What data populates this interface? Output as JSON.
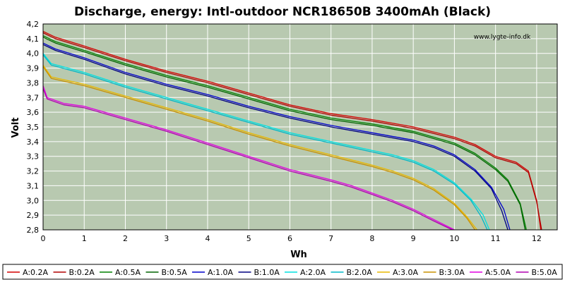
{
  "chart_data": {
    "type": "line",
    "title": "Discharge, energy: Intl-outdoor NCR18650B 3400mAh (Black)",
    "xlabel": "Wh",
    "ylabel": "Volt",
    "xlim": [
      0,
      12.5
    ],
    "ylim": [
      2.8,
      4.2
    ],
    "x_ticks": [
      "0",
      "1",
      "2",
      "3",
      "4",
      "5",
      "6",
      "7",
      "8",
      "9",
      "10",
      "11",
      "12"
    ],
    "y_ticks": [
      "2,8",
      "2,9",
      "3,0",
      "3,1",
      "3,2",
      "3,3",
      "3,4",
      "3,5",
      "3,6",
      "3,7",
      "3,8",
      "3,9",
      "4,0",
      "4,1",
      "4,2"
    ],
    "grid": true,
    "watermark": "www.lygte-info.dk",
    "legend_position": "bottom",
    "plot_background": "#b8c9b0",
    "series": [
      {
        "name": "A:0.2A",
        "color": "#d40000",
        "x": [
          0,
          0.3,
          1,
          2,
          3,
          4,
          5,
          6,
          7,
          8,
          9,
          10,
          10.5,
          11,
          11.5,
          11.8,
          12.0,
          12.1
        ],
        "y": [
          4.15,
          4.11,
          4.05,
          3.96,
          3.88,
          3.81,
          3.73,
          3.65,
          3.59,
          3.55,
          3.5,
          3.43,
          3.38,
          3.3,
          3.26,
          3.2,
          3.0,
          2.8
        ]
      },
      {
        "name": "B:0.2A",
        "color": "#b00000",
        "x": [
          0,
          0.3,
          1,
          2,
          3,
          4,
          5,
          6,
          7,
          8,
          9,
          10,
          10.5,
          11,
          11.5,
          11.8,
          12.0,
          12.12
        ],
        "y": [
          4.14,
          4.1,
          4.04,
          3.95,
          3.87,
          3.8,
          3.72,
          3.64,
          3.58,
          3.54,
          3.49,
          3.42,
          3.37,
          3.29,
          3.25,
          3.19,
          2.99,
          2.8
        ]
      },
      {
        "name": "A:0.5A",
        "color": "#008000",
        "x": [
          0,
          0.3,
          1,
          2,
          3,
          4,
          5,
          6,
          7,
          8,
          9,
          10,
          10.5,
          11,
          11.3,
          11.6,
          11.75
        ],
        "y": [
          4.12,
          4.08,
          4.02,
          3.93,
          3.85,
          3.78,
          3.7,
          3.62,
          3.56,
          3.52,
          3.47,
          3.39,
          3.32,
          3.22,
          3.14,
          2.98,
          2.8
        ]
      },
      {
        "name": "B:0.5A",
        "color": "#006400",
        "x": [
          0,
          0.3,
          1,
          2,
          3,
          4,
          5,
          6,
          7,
          8,
          9,
          10,
          10.5,
          11,
          11.3,
          11.6,
          11.72
        ],
        "y": [
          4.11,
          4.07,
          4.01,
          3.92,
          3.84,
          3.77,
          3.69,
          3.61,
          3.55,
          3.51,
          3.46,
          3.38,
          3.31,
          3.21,
          3.13,
          2.97,
          2.8
        ]
      },
      {
        "name": "A:1.0A",
        "color": "#0000cc",
        "x": [
          0,
          0.3,
          1,
          2,
          3,
          4,
          5,
          6,
          7,
          8,
          9,
          9.5,
          10,
          10.5,
          10.9,
          11.2,
          11.35
        ],
        "y": [
          4.07,
          4.03,
          3.97,
          3.87,
          3.79,
          3.72,
          3.64,
          3.57,
          3.51,
          3.46,
          3.41,
          3.37,
          3.31,
          3.21,
          3.09,
          2.94,
          2.8
        ]
      },
      {
        "name": "B:1.0A",
        "color": "#000080",
        "x": [
          0,
          0.3,
          1,
          2,
          3,
          4,
          5,
          6,
          7,
          8,
          9,
          9.5,
          10,
          10.5,
          10.9,
          11.15,
          11.3
        ],
        "y": [
          4.06,
          4.02,
          3.96,
          3.86,
          3.78,
          3.71,
          3.63,
          3.56,
          3.5,
          3.45,
          3.4,
          3.36,
          3.3,
          3.2,
          3.08,
          2.93,
          2.8
        ]
      },
      {
        "name": "A:2.0A",
        "color": "#00e0e0",
        "x": [
          0,
          0.2,
          1,
          2,
          3,
          4,
          5,
          6,
          7,
          8,
          8.5,
          9,
          9.5,
          10,
          10.4,
          10.7,
          10.85
        ],
        "y": [
          4.0,
          3.93,
          3.87,
          3.78,
          3.7,
          3.62,
          3.54,
          3.46,
          3.4,
          3.34,
          3.31,
          3.27,
          3.21,
          3.12,
          3.01,
          2.9,
          2.8
        ]
      },
      {
        "name": "B:2.0A",
        "color": "#00b8c8",
        "x": [
          0,
          0.2,
          1,
          2,
          3,
          4,
          5,
          6,
          7,
          8,
          8.5,
          9,
          9.5,
          10,
          10.4,
          10.65,
          10.8
        ],
        "y": [
          3.99,
          3.92,
          3.86,
          3.77,
          3.69,
          3.61,
          3.53,
          3.45,
          3.39,
          3.33,
          3.3,
          3.26,
          3.2,
          3.11,
          3.0,
          2.89,
          2.8
        ]
      },
      {
        "name": "A:3.0A",
        "color": "#e8b800",
        "x": [
          0,
          0.2,
          1,
          2,
          3,
          4,
          5,
          6,
          7,
          8,
          8.5,
          9,
          9.5,
          10,
          10.3,
          10.55
        ],
        "y": [
          3.92,
          3.84,
          3.79,
          3.71,
          3.63,
          3.55,
          3.46,
          3.38,
          3.31,
          3.24,
          3.2,
          3.15,
          3.08,
          2.98,
          2.89,
          2.8
        ]
      },
      {
        "name": "B:3.0A",
        "color": "#c89000",
        "x": [
          0,
          0.2,
          1,
          2,
          3,
          4,
          5,
          6,
          7,
          8,
          8.5,
          9,
          9.5,
          10,
          10.3,
          10.5
        ],
        "y": [
          3.91,
          3.83,
          3.78,
          3.7,
          3.62,
          3.54,
          3.45,
          3.37,
          3.3,
          3.23,
          3.19,
          3.14,
          3.07,
          2.97,
          2.88,
          2.8
        ]
      },
      {
        "name": "A:5.0A",
        "color": "#e000e0",
        "x": [
          0,
          0.1,
          0.5,
          1,
          2,
          3,
          4,
          5,
          6,
          7,
          7.5,
          8,
          8.5,
          9,
          9.5,
          10.0
        ],
        "y": [
          3.78,
          3.7,
          3.66,
          3.64,
          3.56,
          3.48,
          3.39,
          3.3,
          3.21,
          3.14,
          3.1,
          3.05,
          3.0,
          2.94,
          2.87,
          2.8
        ]
      },
      {
        "name": "B:5.0A",
        "color": "#b000b0",
        "x": [
          0,
          0.1,
          0.5,
          1,
          2,
          3,
          4,
          5,
          6,
          7,
          7.5,
          8,
          8.5,
          9,
          9.5,
          9.95
        ],
        "y": [
          3.76,
          3.69,
          3.65,
          3.63,
          3.55,
          3.47,
          3.38,
          3.29,
          3.2,
          3.13,
          3.09,
          3.04,
          2.99,
          2.93,
          2.86,
          2.8
        ]
      }
    ]
  }
}
